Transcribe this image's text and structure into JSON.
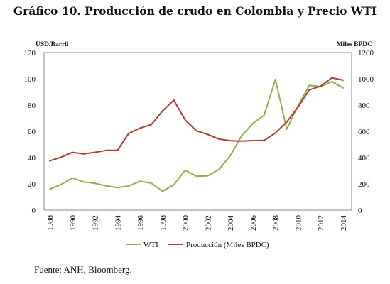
{
  "chart_data": {
    "type": "line",
    "title": "Gráfico 10. Producción de crudo en Colombia y Precio WTI",
    "left_axis_label": "USD/Barril",
    "right_axis_label": "Miles BPDC",
    "x": [
      1988,
      1989,
      1990,
      1991,
      1992,
      1993,
      1994,
      1995,
      1996,
      1997,
      1998,
      1999,
      2000,
      2001,
      2002,
      2003,
      2004,
      2005,
      2006,
      2007,
      2008,
      2009,
      2010,
      2011,
      2012,
      2013,
      2014
    ],
    "x_ticks": [
      "1988",
      "1990",
      "1992",
      "1994",
      "1996",
      "1998",
      "2000",
      "2002",
      "2004",
      "2006",
      "2008",
      "2010",
      "2012",
      "2014"
    ],
    "y_left_ticks": [
      "0",
      "20",
      "40",
      "60",
      "80",
      "100",
      "120"
    ],
    "y_right_ticks": [
      "0",
      "200",
      "400",
      "600",
      "800",
      "1000",
      "1200"
    ],
    "ylim_left": [
      0,
      120
    ],
    "ylim_right": [
      0,
      1200
    ],
    "series": [
      {
        "name": "WTI",
        "axis": "left",
        "color": "#8db04e",
        "values": [
          16,
          19.5,
          24.5,
          21.5,
          20.5,
          18.5,
          17.2,
          18.4,
          22,
          20.6,
          14.4,
          19.3,
          30.4,
          25.9,
          26.1,
          31,
          41.5,
          56.5,
          66,
          72.3,
          99.6,
          61.7,
          79.4,
          95,
          94.1,
          97.9,
          93
        ]
      },
      {
        "name": "Producción (Miles BPDC)",
        "axis": "right",
        "color": "#b03a32",
        "values": [
          375,
          403,
          440,
          428,
          440,
          455,
          455,
          585,
          625,
          652,
          755,
          838,
          687,
          604,
          577,
          541,
          528,
          526,
          529,
          531,
          588,
          671,
          785,
          915,
          944,
          1007,
          990
        ]
      }
    ],
    "grid": false,
    "legend": "bottom"
  },
  "footer": {
    "source": "Fuente: ANH, Bloomberg."
  }
}
